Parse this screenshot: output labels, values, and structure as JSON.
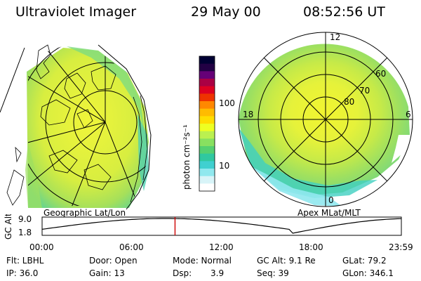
{
  "header": {
    "title": "Ultraviolet Imager",
    "date": "29 May 00",
    "time": "08:52:56 UT"
  },
  "left_panel": {
    "label": "Geographic Lat/Lon"
  },
  "right_panel": {
    "label": "Apex MLat/MLT",
    "mlt_labels": [
      "12",
      "18",
      "6",
      "0"
    ],
    "mlat_labels": [
      "60",
      "70",
      "80"
    ]
  },
  "colorbar": {
    "unit_label": "photon cm⁻²s⁻¹",
    "ticks": [
      "100",
      "10"
    ],
    "colors": [
      "#000033",
      "#220044",
      "#660077",
      "#aa0044",
      "#dd0022",
      "#ee3300",
      "#ff8800",
      "#ffbb00",
      "#ffdd00",
      "#eeff22",
      "#bbf050",
      "#88e060",
      "#55d070",
      "#30c8a0",
      "#40d0d0",
      "#90e8ee",
      "#d8f4f8",
      "#ffffff"
    ]
  },
  "timeline": {
    "axis_label": "GC Alt",
    "y_ticks": [
      "9.0",
      "1.8"
    ],
    "x_ticks": [
      "00:00",
      "06:00",
      "12:00",
      "18:00",
      "23:59"
    ],
    "marker_time_hours": 8.88,
    "marker_color": "#cc0000"
  },
  "status": {
    "filter": "Flt: LBHL",
    "ip": "IP: 36.0",
    "door": "Door: Open",
    "gain": "Gain: 13",
    "mode": "Mode: Normal",
    "dsp_label": "Dsp:",
    "dsp_value": "3.9",
    "gc_alt": "GC Alt: 9.1 Re",
    "seq": "Seq: 39",
    "glat": "GLat: 79.2",
    "glon": "GLon: 346.1"
  }
}
